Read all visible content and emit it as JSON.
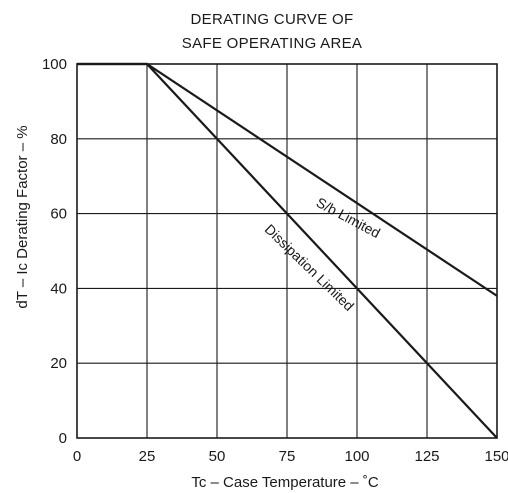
{
  "chart_data": {
    "type": "line",
    "title": [
      "DERATING CURVE OF",
      "SAFE OPERATING AREA"
    ],
    "xlabel": "Tc – Case Temperature – ˚C",
    "ylabel": "dT – Ic Derating Factor – %",
    "xlim": [
      0,
      150
    ],
    "ylim": [
      0,
      100
    ],
    "x_ticks": [
      0,
      25,
      50,
      75,
      100,
      125,
      150
    ],
    "y_ticks": [
      0,
      20,
      40,
      60,
      80,
      100
    ],
    "grid": true,
    "series": [
      {
        "name": "S/b Limited",
        "x": [
          0,
          25,
          150
        ],
        "y": [
          100,
          100,
          38
        ]
      },
      {
        "name": "Dissipation Limited",
        "x": [
          0,
          25,
          150
        ],
        "y": [
          100,
          100,
          0
        ]
      }
    ],
    "colors": {
      "line": "#1a1a1a",
      "grid": "#1a1a1a",
      "background": "#ffffff"
    }
  }
}
